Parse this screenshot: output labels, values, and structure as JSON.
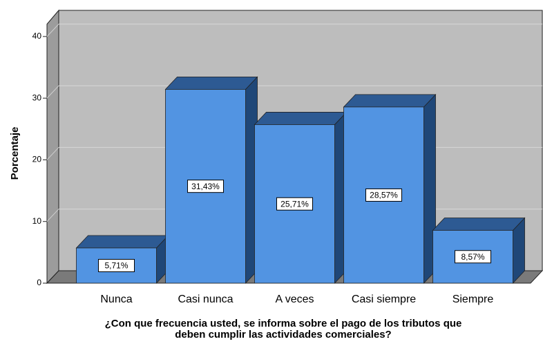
{
  "chart_data": {
    "type": "bar3d",
    "y_label": "Porcentaje",
    "x_label": [
      "¿Con que frecuencia usted, se informa sobre el pago de los tributos que",
      "deben cumplir las actividades comerciales?"
    ],
    "categories": [
      "Nunca",
      "Casi nunca",
      "A veces",
      "Casi siempre",
      "Siempre"
    ],
    "values": [
      5.71,
      31.43,
      25.71,
      28.57,
      8.57
    ],
    "value_labels": [
      "5,71%",
      "31,43%",
      "25,71%",
      "28,57%",
      "8,57%"
    ],
    "color": "#5294e2",
    "ylim": [
      0,
      42
    ],
    "yticks": [
      0,
      10,
      20,
      30,
      40
    ],
    "grid": true
  }
}
